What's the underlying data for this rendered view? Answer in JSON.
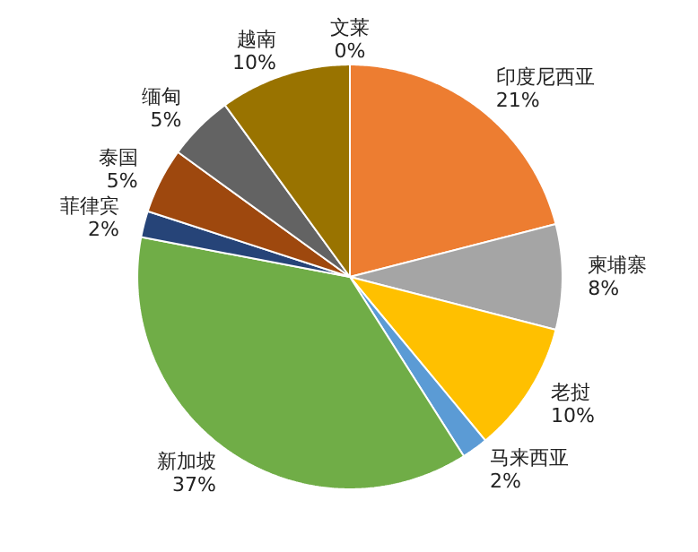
{
  "chart_data": {
    "type": "pie",
    "categories": [
      "文莱",
      "印度尼西亚",
      "柬埔寨",
      "老挝",
      "马来西亚",
      "新加坡",
      "菲律宾",
      "泰国",
      "缅甸",
      "越南"
    ],
    "values": [
      0,
      21,
      8,
      10,
      2,
      37,
      2,
      5,
      5,
      10
    ],
    "value_labels": [
      "0%",
      "21%",
      "8%",
      "10%",
      "2%",
      "37%",
      "2%",
      "5%",
      "5%",
      "10%"
    ],
    "colors": [
      "#4472c4",
      "#ed7d31",
      "#a5a5a5",
      "#ffc000",
      "#5b9bd5",
      "#70ad47",
      "#264478",
      "#9e480e",
      "#636363",
      "#997300"
    ]
  }
}
